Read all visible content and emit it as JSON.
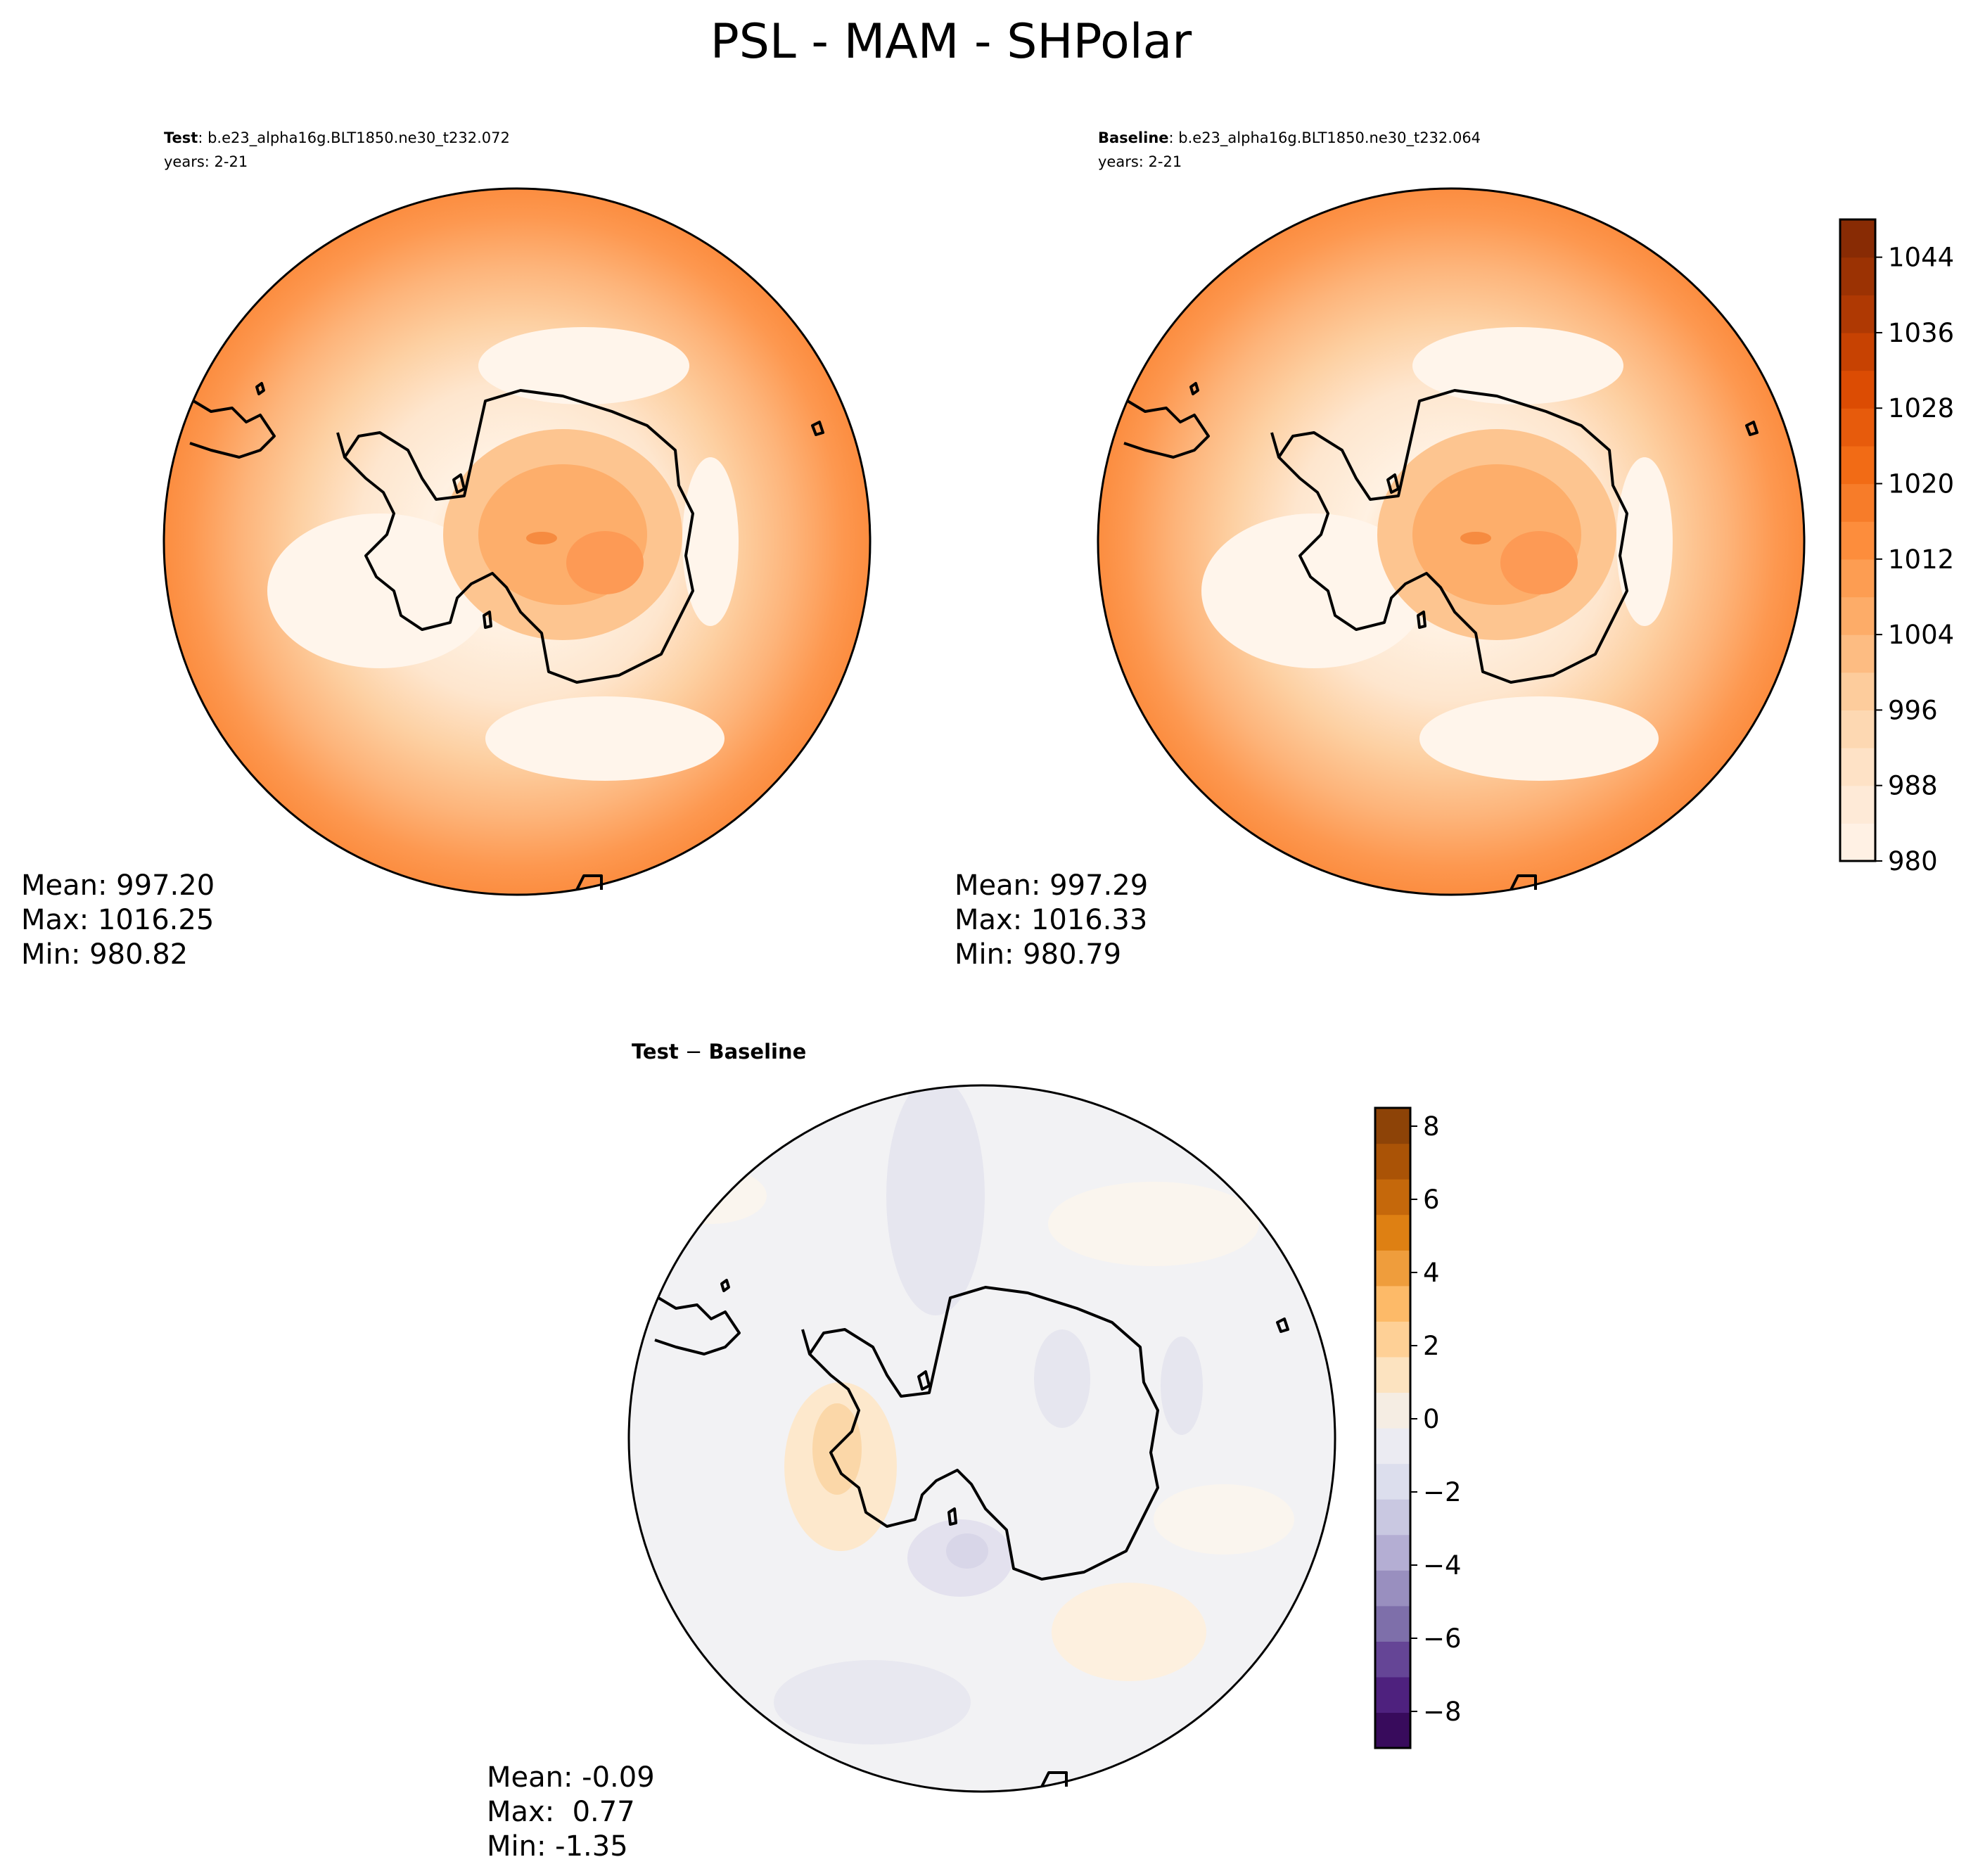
{
  "figure": {
    "title": "PSL - MAM - SHPolar"
  },
  "chart_data": [
    {
      "type": "heatmap",
      "projection": "south-polar-stereographic",
      "title_bold": "Test",
      "title_rest": ": b.e23_alpha16g.BLT1850.ne30_t232.072",
      "subtitle": "years: 2-21",
      "stats": {
        "mean": "Mean: 997.20",
        "max": "Max: 1016.25",
        "min": "Min: 980.82"
      },
      "field_range": [
        980.82,
        1016.25
      ],
      "colormap": "Oranges"
    },
    {
      "type": "heatmap",
      "projection": "south-polar-stereographic",
      "title_bold": "Baseline",
      "title_rest": ": b.e23_alpha16g.BLT1850.ne30_t232.064",
      "subtitle": "years: 2-21",
      "stats": {
        "mean": "Mean: 997.29",
        "max": "Max: 1016.33",
        "min": "Min: 980.79"
      },
      "field_range": [
        980.79,
        1016.33
      ],
      "colormap": "Oranges",
      "colorbar": {
        "ticks": [
          "980",
          "988",
          "996",
          "1004",
          "1012",
          "1020",
          "1028",
          "1036",
          "1044"
        ],
        "range": [
          980,
          1048
        ],
        "levels": 17
      }
    },
    {
      "type": "heatmap",
      "projection": "south-polar-stereographic",
      "title_bold": "Test",
      "title_op": " − ",
      "title_bold2": "Baseline",
      "stats": {
        "mean": "Mean: -0.09",
        "max": "Max:  0.77",
        "min": "Min: -1.35"
      },
      "field_range": [
        -1.35,
        0.77
      ],
      "colormap": "PuOr_r",
      "colorbar": {
        "ticks": [
          "−8",
          "−6",
          "−4",
          "−2",
          "0",
          "2",
          "4",
          "6",
          "8"
        ],
        "range": [
          -9,
          8.5
        ],
        "levels": 18
      }
    }
  ],
  "colors": {
    "oranges": [
      "#fff5eb",
      "#fee6ce",
      "#fdd0a2",
      "#fdae6b",
      "#fd8d3c",
      "#f16913",
      "#d94801",
      "#a63603",
      "#7f2704"
    ],
    "diverging": [
      "#2d004b",
      "#542788",
      "#8073ac",
      "#b2abd2",
      "#d8daeb",
      "#f2f2f4",
      "#fee0b6",
      "#fdb863",
      "#e08214",
      "#b35806",
      "#7f3b08"
    ]
  }
}
